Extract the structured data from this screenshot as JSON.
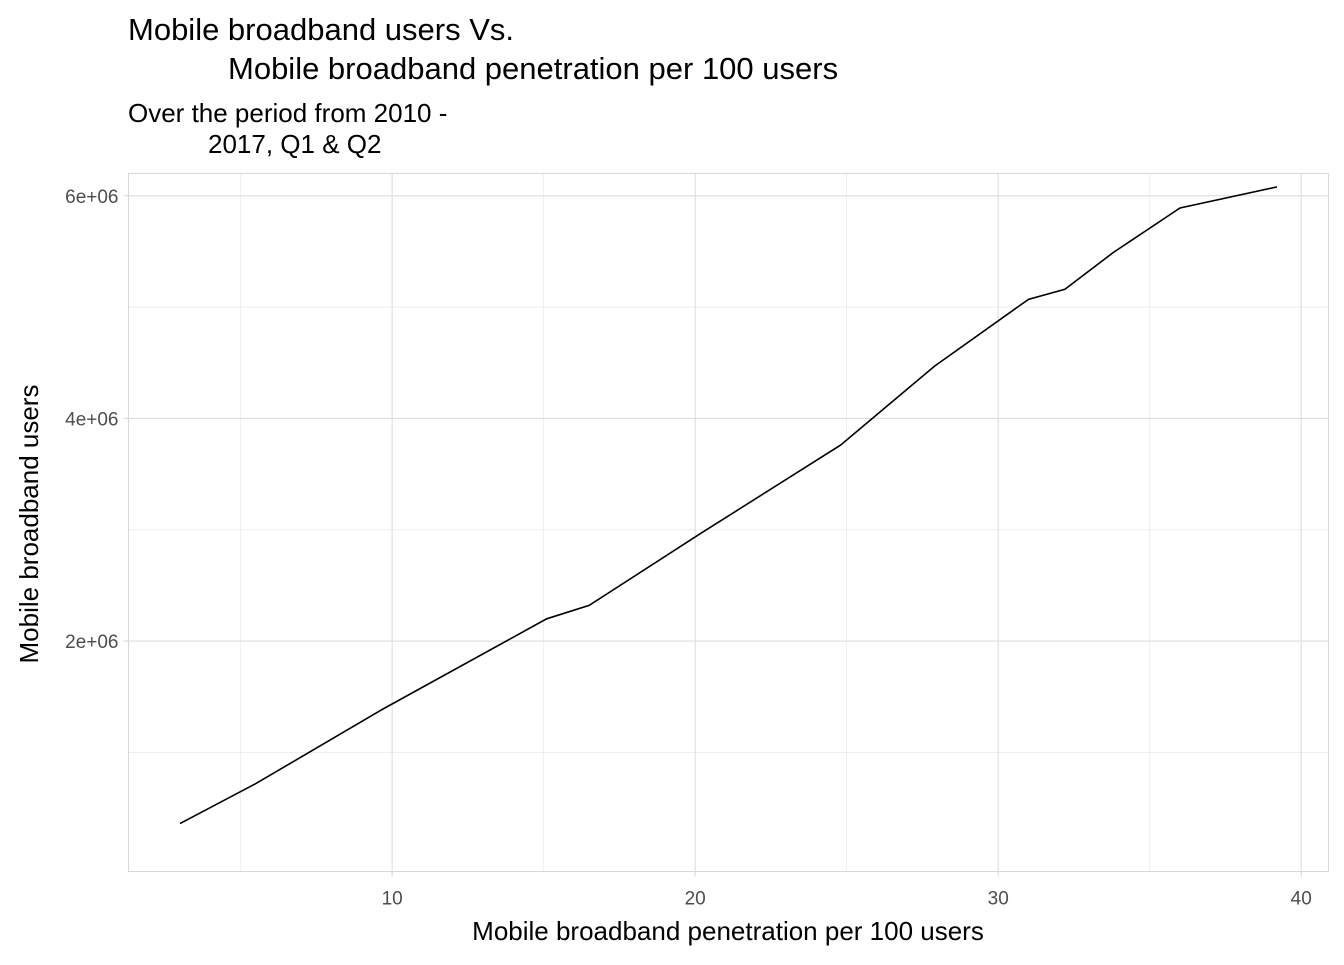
{
  "chart": {
    "title_lines": [
      "Mobile broadband users Vs.",
      "Mobile broadband penetration per 100 users"
    ],
    "subtitle_lines": [
      "Over the period from 2010 -",
      "2017, Q1 & Q2"
    ]
  },
  "chart_data": {
    "type": "line",
    "title": "Mobile broadband users Vs.\n        Mobile broadband penetration per 100 users",
    "subtitle": "Over the period from 2010 -\n        2017, Q1 & Q2",
    "xlabel": "Mobile broadband penetration per 100 users",
    "ylabel": "Mobile broadband users",
    "xlim": [
      1.3,
      40.9
    ],
    "ylim": [
      -70000,
      6200000
    ],
    "x_ticks": [
      10,
      20,
      30,
      40
    ],
    "x_tick_labels": [
      "10",
      "20",
      "30",
      "40"
    ],
    "y_ticks": [
      2000000,
      4000000,
      6000000
    ],
    "y_tick_labels": [
      "2e+06",
      "4e+06",
      "6e+06"
    ],
    "x_minor_ticks": [
      5,
      15,
      25,
      35
    ],
    "y_minor_ticks": [
      1000000,
      3000000,
      5000000
    ],
    "grid": true,
    "legend": "none",
    "series": [
      {
        "x": [
          3.0,
          5.5,
          9.7,
          15.1,
          16.5,
          20.2,
          24.8,
          27.9,
          31.0,
          32.2,
          33.8,
          36.0,
          39.2
        ],
        "y": [
          360000,
          720000,
          1390000,
          2200000,
          2320000,
          2970000,
          3760000,
          4470000,
          5070000,
          5160000,
          5490000,
          5890000,
          6080000
        ]
      }
    ]
  }
}
